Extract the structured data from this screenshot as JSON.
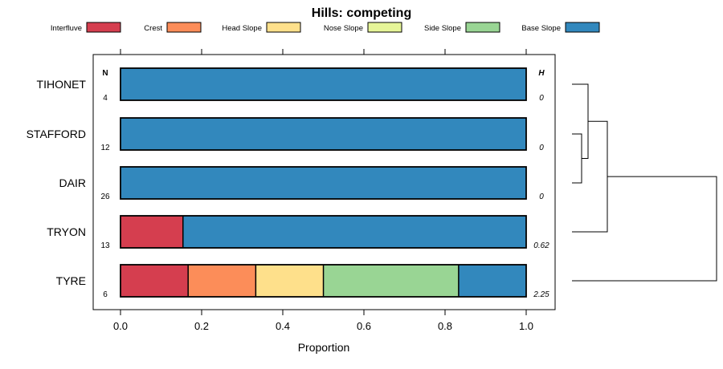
{
  "chart_data": {
    "type": "bar",
    "orientation": "horizontal",
    "stacked": true,
    "title": "Hills: competing",
    "xlabel": "Proportion",
    "ylabel": "",
    "xlim": [
      0,
      1
    ],
    "xticks": [
      "0.0",
      "0.2",
      "0.4",
      "0.6",
      "0.8",
      "1.0"
    ],
    "legend": {
      "position": "top",
      "entries": [
        {
          "label": "Interfluve",
          "color": "#D53E4F"
        },
        {
          "label": "Crest",
          "color": "#FC8D59"
        },
        {
          "label": "Head Slope",
          "color": "#FEE08B"
        },
        {
          "label": "Nose Slope",
          "color": "#E6F598"
        },
        {
          "label": "Side Slope",
          "color": "#99D594"
        },
        {
          "label": "Base Slope",
          "color": "#3288BD"
        }
      ]
    },
    "n_header": "N",
    "h_header": "H",
    "categories": [
      "TIHONET",
      "STAFFORD",
      "DAIR",
      "TRYON",
      "TYRE"
    ],
    "n_values": [
      "4",
      "12",
      "26",
      "13",
      "6"
    ],
    "h_values": [
      "0",
      "0",
      "0",
      "0.62",
      "2.25"
    ],
    "series": [
      {
        "name": "Interfluve",
        "values": [
          0,
          0,
          0,
          0.154,
          0.1667
        ]
      },
      {
        "name": "Crest",
        "values": [
          0,
          0,
          0,
          0,
          0.1667
        ]
      },
      {
        "name": "Head Slope",
        "values": [
          0,
          0,
          0,
          0,
          0.1667
        ]
      },
      {
        "name": "Nose Slope",
        "values": [
          0,
          0,
          0,
          0,
          0
        ]
      },
      {
        "name": "Side Slope",
        "values": [
          0,
          0,
          0,
          0,
          0.3333
        ]
      },
      {
        "name": "Base Slope",
        "values": [
          1,
          1,
          1,
          0.846,
          0.1667
        ]
      }
    ],
    "dendrogram": {
      "merges": [
        {
          "left": "STAFFORD",
          "right": "DAIR",
          "height": 0.15
        },
        {
          "left": "TIHONET",
          "right": [
            "STAFFORD",
            "DAIR"
          ],
          "height": 0.25
        },
        {
          "left": [
            "TIHONET",
            "STAFFORD",
            "DAIR"
          ],
          "right": "TRYON",
          "height": 0.55
        },
        {
          "left": [
            "TIHONET",
            "STAFFORD",
            "DAIR",
            "TRYON"
          ],
          "right": "TYRE",
          "height": 2.25
        }
      ]
    }
  }
}
